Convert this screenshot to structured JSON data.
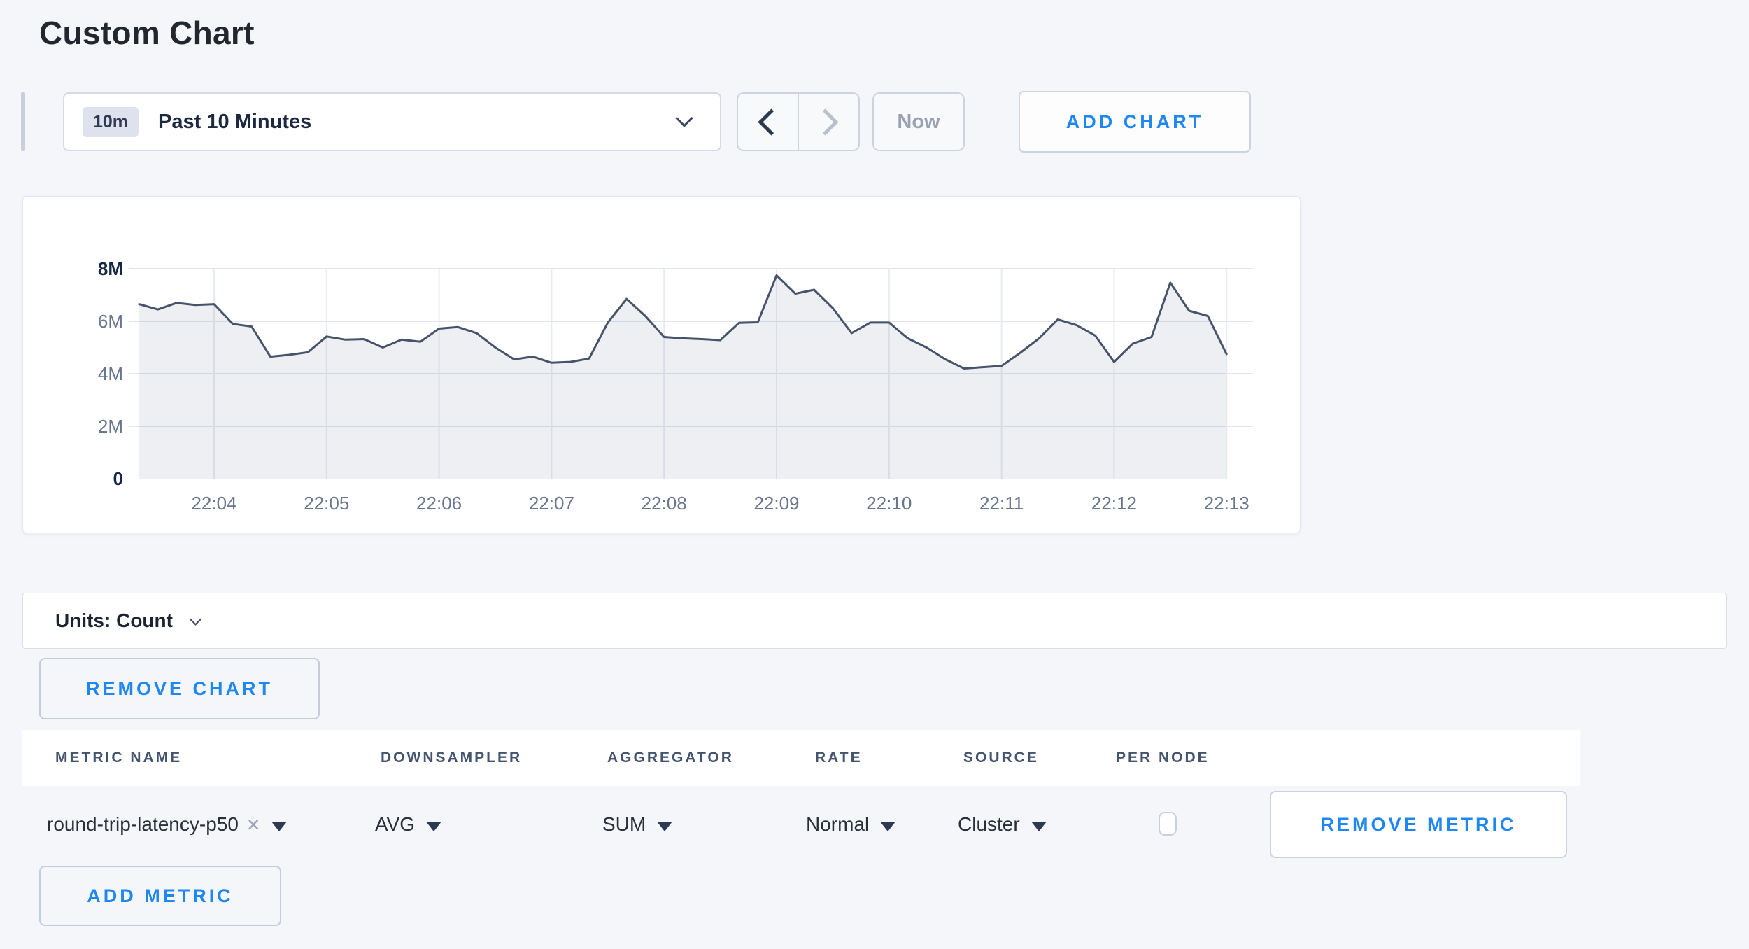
{
  "page": {
    "title": "Custom Chart"
  },
  "colors": {
    "page_background": "#f5f6fa",
    "accent_blue": "#1f87f2",
    "chart_line": "#46536b",
    "chart_fill": "rgba(70,83,107,0.09)",
    "grid_horizontal": "#dfe4ee",
    "grid_vertical": "#e8ebf3",
    "axis_dark": "#142747",
    "axis_muted": "#68768f",
    "header_slate": "#44546f",
    "disabled_text": "#9aa2b2",
    "border": "#d5dae6"
  },
  "toolbar": {
    "range_badge": "10m",
    "range_label": "Past 10 Minutes",
    "range_dropdown_icon": "chevron-down-icon",
    "prev_icon": "chevron-left-icon",
    "next_icon": "chevron-right-icon",
    "next_disabled": true,
    "now_label": "Now",
    "add_chart_label": "ADD CHART"
  },
  "chart_data": {
    "type": "area",
    "title": "",
    "xlabel": "",
    "ylabel": "",
    "legend": "none",
    "grid": true,
    "start_time": "22:03:20",
    "end_time": "22:13:00",
    "interval_seconds": 10,
    "points_per_minute": 6,
    "points_before_first_tick": 4,
    "x_ticks": [
      "22:04",
      "22:05",
      "22:06",
      "22:07",
      "22:08",
      "22:09",
      "22:10",
      "22:11",
      "22:12",
      "22:13"
    ],
    "y_ticks": [
      {
        "label": "0",
        "value": 0,
        "bold": true
      },
      {
        "label": "2M",
        "value": 2,
        "bold": false
      },
      {
        "label": "4M",
        "value": 4,
        "bold": false
      },
      {
        "label": "6M",
        "value": 6,
        "bold": false
      },
      {
        "label": "8M",
        "value": 8,
        "bold": true
      }
    ],
    "ylim_millions": [
      0,
      8
    ],
    "series": [
      {
        "name": "round-trip-latency-p50",
        "values_millions": [
          6.65,
          6.45,
          6.7,
          6.62,
          6.65,
          5.9,
          5.8,
          4.65,
          4.72,
          4.82,
          5.42,
          5.3,
          5.32,
          5.0,
          5.3,
          5.22,
          5.72,
          5.78,
          5.55,
          5.0,
          4.55,
          4.65,
          4.42,
          4.45,
          4.58,
          5.95,
          6.85,
          6.2,
          5.4,
          5.35,
          5.32,
          5.28,
          5.94,
          5.96,
          7.75,
          7.05,
          7.2,
          6.5,
          5.55,
          5.95,
          5.95,
          5.35,
          5.0,
          4.55,
          4.2,
          4.25,
          4.3,
          4.8,
          5.35,
          6.07,
          5.85,
          5.45,
          4.45,
          5.15,
          5.4,
          7.47,
          6.4,
          6.2,
          4.75
        ]
      }
    ]
  },
  "units_bar": {
    "label": "Units: Count",
    "dropdown_icon": "chevron-down-icon"
  },
  "chart_actions": {
    "remove_chart_label": "REMOVE CHART"
  },
  "metrics_table": {
    "headers": [
      "METRIC NAME",
      "DOWNSAMPLER",
      "AGGREGATOR",
      "RATE",
      "SOURCE",
      "PER NODE"
    ],
    "rows": [
      {
        "metric_name": "round-trip-latency-p50",
        "remove_tag_icon": "x-mark-icon",
        "downsampler": "AVG",
        "aggregator": "SUM",
        "rate": "Normal",
        "source": "Cluster",
        "per_node_checked": false,
        "remove_metric_label": "REMOVE METRIC"
      }
    ],
    "add_metric_label": "ADD METRIC"
  }
}
